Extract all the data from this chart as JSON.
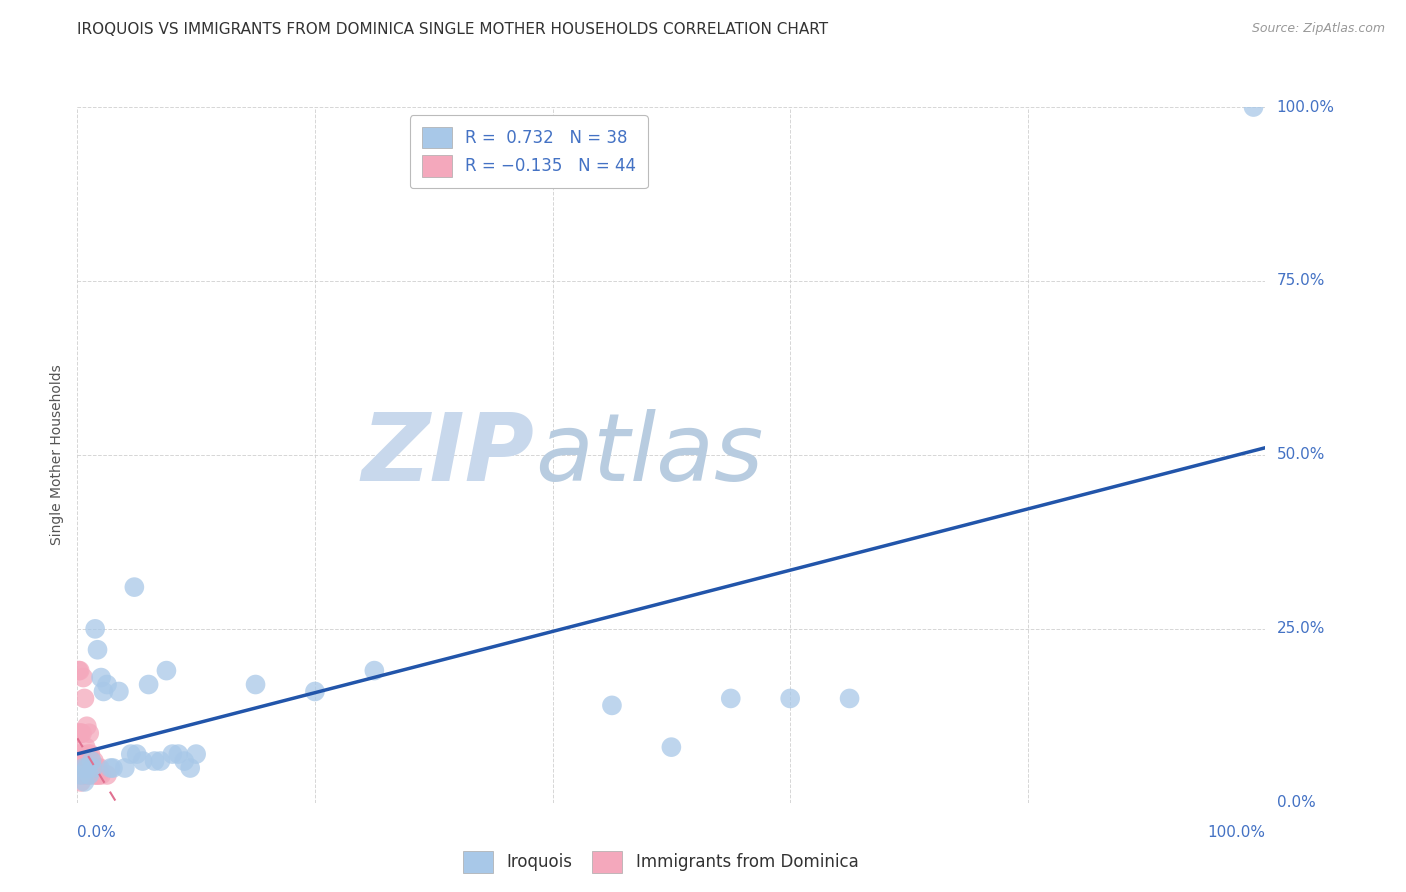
{
  "title": "IROQUOIS VS IMMIGRANTS FROM DOMINICA SINGLE MOTHER HOUSEHOLDS CORRELATION CHART",
  "source": "Source: ZipAtlas.com",
  "ylabel": "Single Mother Households",
  "iroquois_R": 0.732,
  "iroquois_N": 38,
  "dominica_R": -0.135,
  "dominica_N": 44,
  "iroquois_color": "#a8c8e8",
  "dominica_color": "#f4a8bc",
  "iroquois_line_color": "#2255aa",
  "dominica_line_color": "#e07090",
  "background_color": "#ffffff",
  "grid_color": "#cccccc",
  "watermark_zip": "ZIP",
  "watermark_atlas": "atlas",
  "ytick_labels": [
    "0.0%",
    "25.0%",
    "50.0%",
    "75.0%",
    "100.0%"
  ],
  "ytick_values": [
    0.0,
    0.25,
    0.5,
    0.75,
    1.0
  ],
  "iroquois_x": [
    0.003,
    0.005,
    0.006,
    0.008,
    0.01,
    0.012,
    0.013,
    0.015,
    0.017,
    0.02,
    0.022,
    0.025,
    0.028,
    0.03,
    0.035,
    0.04,
    0.045,
    0.048,
    0.05,
    0.055,
    0.06,
    0.065,
    0.07,
    0.075,
    0.08,
    0.085,
    0.09,
    0.095,
    0.1,
    0.15,
    0.2,
    0.25,
    0.45,
    0.5,
    0.55,
    0.6,
    0.65,
    0.99
  ],
  "iroquois_y": [
    0.04,
    0.05,
    0.03,
    0.05,
    0.04,
    0.06,
    0.05,
    0.25,
    0.22,
    0.18,
    0.16,
    0.17,
    0.05,
    0.05,
    0.16,
    0.05,
    0.07,
    0.31,
    0.07,
    0.06,
    0.17,
    0.06,
    0.06,
    0.19,
    0.07,
    0.07,
    0.06,
    0.05,
    0.07,
    0.17,
    0.16,
    0.19,
    0.14,
    0.08,
    0.15,
    0.15,
    0.15,
    1.0
  ],
  "dominica_x": [
    0.001,
    0.001,
    0.001,
    0.002,
    0.002,
    0.002,
    0.002,
    0.003,
    0.003,
    0.003,
    0.003,
    0.003,
    0.004,
    0.004,
    0.004,
    0.005,
    0.005,
    0.005,
    0.006,
    0.006,
    0.006,
    0.007,
    0.007,
    0.007,
    0.008,
    0.008,
    0.008,
    0.009,
    0.009,
    0.01,
    0.01,
    0.011,
    0.011,
    0.012,
    0.012,
    0.013,
    0.014,
    0.015,
    0.016,
    0.017,
    0.018,
    0.019,
    0.02,
    0.025
  ],
  "dominica_y": [
    0.07,
    0.1,
    0.19,
    0.04,
    0.06,
    0.1,
    0.19,
    0.03,
    0.05,
    0.06,
    0.07,
    0.1,
    0.04,
    0.06,
    0.1,
    0.05,
    0.06,
    0.18,
    0.04,
    0.05,
    0.15,
    0.04,
    0.06,
    0.08,
    0.04,
    0.06,
    0.11,
    0.05,
    0.07,
    0.05,
    0.1,
    0.04,
    0.07,
    0.05,
    0.06,
    0.05,
    0.06,
    0.04,
    0.04,
    0.05,
    0.04,
    0.05,
    0.04,
    0.04
  ]
}
